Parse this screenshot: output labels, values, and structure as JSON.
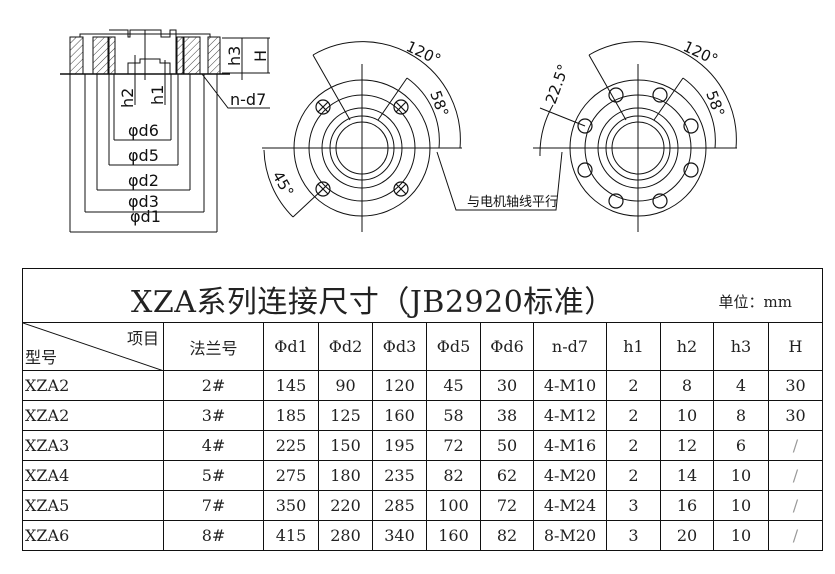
{
  "drawing": {
    "labels": {
      "h3": "h3",
      "H": "H",
      "h2": "h2",
      "h1": "h1",
      "n_d7": "n-d7",
      "d6": "φd6",
      "d5": "φd5",
      "d2": "φd2",
      "d3": "φd3",
      "d1": "φd1",
      "angle_120_left": "120°",
      "angle_58_left": "58°",
      "angle_45": "45°",
      "angle_120_right": "120°",
      "angle_58_right": "58°",
      "angle_22_5": "22.5°",
      "parallel_note": "与电机轴线平行"
    }
  },
  "table": {
    "title": "XZA系列连接尺寸（JB2920标准）",
    "unit": "单位：mm",
    "corner_item": "项目",
    "corner_type": "型号",
    "headers": [
      "法兰号",
      "Φd1",
      "Φd2",
      "Φd3",
      "Φd5",
      "Φd6",
      "n-d7",
      "h1",
      "h2",
      "h3",
      "H"
    ],
    "rows": [
      [
        "XZA2",
        "2#",
        "145",
        "90",
        "120",
        "45",
        "30",
        "4-M10",
        "2",
        "8",
        "4",
        "30"
      ],
      [
        "XZA2",
        "3#",
        "185",
        "125",
        "160",
        "58",
        "38",
        "4-M12",
        "2",
        "10",
        "8",
        "30"
      ],
      [
        "XZA3",
        "4#",
        "225",
        "150",
        "195",
        "72",
        "50",
        "4-M16",
        "2",
        "12",
        "6",
        "/"
      ],
      [
        "XZA4",
        "5#",
        "275",
        "180",
        "235",
        "82",
        "62",
        "4-M20",
        "2",
        "14",
        "10",
        "/"
      ],
      [
        "XZA5",
        "7#",
        "350",
        "220",
        "285",
        "100",
        "72",
        "4-M24",
        "3",
        "16",
        "10",
        "/"
      ],
      [
        "XZA6",
        "8#",
        "415",
        "280",
        "340",
        "160",
        "82",
        "8-M20",
        "3",
        "20",
        "10",
        "/"
      ]
    ]
  }
}
